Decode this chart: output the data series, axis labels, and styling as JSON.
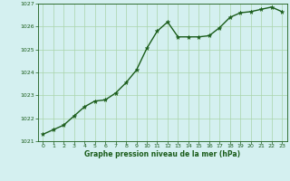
{
  "x": [
    0,
    1,
    2,
    3,
    4,
    5,
    6,
    7,
    8,
    9,
    10,
    11,
    12,
    13,
    14,
    15,
    16,
    17,
    18,
    19,
    20,
    21,
    22,
    23
  ],
  "y": [
    1021.3,
    1021.5,
    1021.7,
    1022.1,
    1022.5,
    1022.75,
    1022.8,
    1023.1,
    1023.55,
    1024.1,
    1025.05,
    1025.8,
    1026.2,
    1025.55,
    1025.55,
    1025.55,
    1025.6,
    1025.95,
    1026.4,
    1026.6,
    1026.65,
    1026.75,
    1026.85,
    1026.65
  ],
  "line_color": "#1a5c1a",
  "marker": "*",
  "marker_color": "#1a5c1a",
  "marker_size": 3.5,
  "bg_color": "#d4f0f0",
  "grid_color": "#aad4aa",
  "xlabel": "Graphe pression niveau de la mer (hPa)",
  "xlabel_color": "#1a5c1a",
  "ylim": [
    1021.0,
    1027.0
  ],
  "yticks": [
    1021,
    1022,
    1023,
    1024,
    1025,
    1026,
    1027
  ],
  "xticks": [
    0,
    1,
    2,
    3,
    4,
    5,
    6,
    7,
    8,
    9,
    10,
    11,
    12,
    13,
    14,
    15,
    16,
    17,
    18,
    19,
    20,
    21,
    22,
    23
  ],
  "tick_color": "#1a5c1a",
  "axis_color": "#1a5c1a",
  "line_width": 1.0,
  "fig_width": 3.2,
  "fig_height": 2.0,
  "dpi": 100
}
